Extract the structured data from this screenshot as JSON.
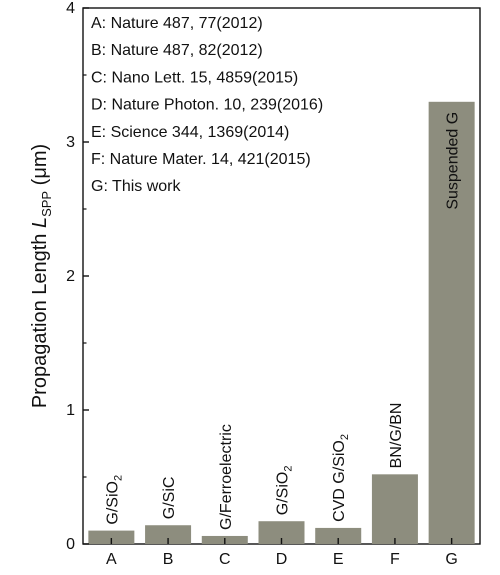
{
  "chart_data": {
    "type": "bar",
    "categories": [
      "A",
      "B",
      "C",
      "D",
      "E",
      "F",
      "G"
    ],
    "values": [
      0.1,
      0.14,
      0.06,
      0.17,
      0.12,
      0.52,
      3.3
    ],
    "bar_labels": [
      {
        "text": "G/SiO",
        "sub": "2"
      },
      {
        "text": "G/SiC",
        "sub": ""
      },
      {
        "text": "G/Ferroelectric",
        "sub": ""
      },
      {
        "text": "G/SiO",
        "sub": "2"
      },
      {
        "text": "CVD G/SiO",
        "sub": "2"
      },
      {
        "text": "BN/G/BN",
        "sub": ""
      },
      {
        "text": "Suspended G",
        "sub": ""
      }
    ],
    "ylabel": {
      "prefix": "Propagation Length ",
      "symbol": "L",
      "sub": "SPP",
      "unit": " (μm)"
    },
    "ylim": [
      0,
      4
    ],
    "yticks": [
      "0",
      "1",
      "2",
      "3",
      "4"
    ],
    "references": [
      "A: Nature 487, 77(2012)",
      "B: Nature 487, 82(2012)",
      "C: Nano Lett. 15, 4859(2015)",
      "D: Nature Photon. 10, 239(2016)",
      "E: Science 344, 1369(2014)",
      "F: Nature Mater. 14, 421(2015)",
      "G: This work"
    ],
    "bar_color": "#8d8d7e",
    "grid": false
  }
}
